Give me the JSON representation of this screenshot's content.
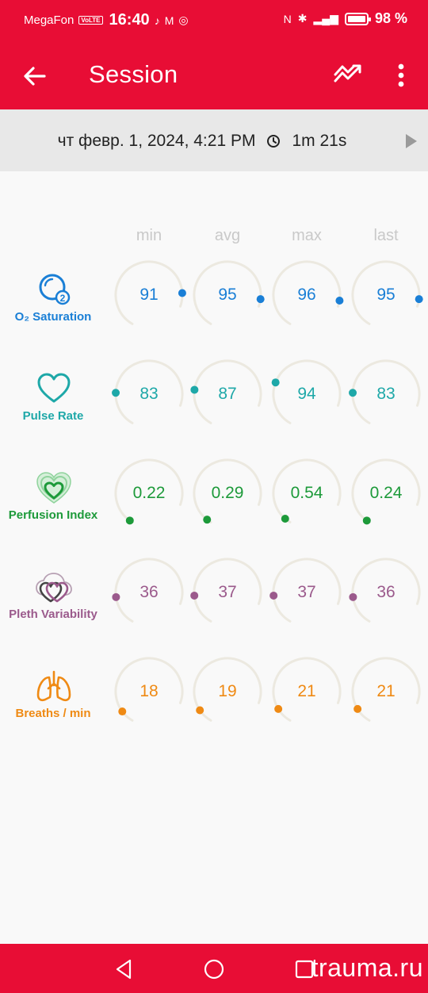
{
  "status_bar": {
    "carrier": "MegaFon",
    "volte": "VoLTE",
    "time": "16:40",
    "battery_pct": "98 %",
    "battery_level": 0.98
  },
  "app_bar": {
    "title": "Session",
    "back_icon": "arrow-left-icon",
    "trend_icon": "trend-icon",
    "menu_icon": "more-vert-icon"
  },
  "session": {
    "datetime": "чт февр. 1, 2024, 4:21 PM",
    "duration": "1m 21s"
  },
  "columns": [
    "min",
    "avg",
    "max",
    "last"
  ],
  "metrics": [
    {
      "id": "o2",
      "label": "O₂ Saturation",
      "icon": "o2-icon",
      "color": "#1a7fd6",
      "values": [
        "91",
        "95",
        "96",
        "95"
      ],
      "levels": [
        0.91,
        0.95,
        0.96,
        0.95
      ]
    },
    {
      "id": "pulse",
      "label": "Pulse Rate",
      "icon": "heart-icon",
      "color": "#1ea8a8",
      "values": [
        "83",
        "87",
        "94",
        "83"
      ],
      "levels": [
        0.24,
        0.26,
        0.31,
        0.24
      ]
    },
    {
      "id": "perfusion",
      "label": "Perfusion Index",
      "icon": "perfusion-heart-icon",
      "color": "#1d9a3a",
      "values": [
        "0.22",
        "0.29",
        "0.54",
        "0.24"
      ],
      "levels": [
        0.02,
        0.03,
        0.04,
        0.02
      ]
    },
    {
      "id": "pleth",
      "label": "Pleth Variability",
      "icon": "pleth-heart-icon",
      "color": "#9b5a8c",
      "values": [
        "36",
        "37",
        "37",
        "36"
      ],
      "levels": [
        0.2,
        0.21,
        0.21,
        0.2
      ]
    },
    {
      "id": "breaths",
      "label": "Breaths / min",
      "icon": "lungs-icon",
      "color": "#ef8a14",
      "values": [
        "18",
        "19",
        "21",
        "21"
      ],
      "levels": [
        0.09,
        0.1,
        0.11,
        0.11
      ]
    }
  ],
  "nav_bar": {
    "back_icon": "nav-back-icon",
    "home_icon": "nav-home-icon",
    "recents_icon": "nav-recents-icon",
    "watermark": "trauma.ru"
  },
  "colors": {
    "brand": "#e80d35",
    "track": "#ece9e0"
  }
}
